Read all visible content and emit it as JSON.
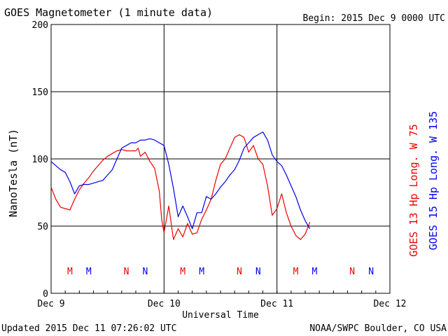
{
  "chart_data": {
    "type": "line",
    "title": "GOES Magnetometer (1 minute data)",
    "begin_label": "Begin:  2015 Dec 9 0000 UTC",
    "xlabel": "Universal Time",
    "ylabel": "NanoTesla (nT)",
    "ylim": [
      0,
      200
    ],
    "yticks": [
      0,
      50,
      100,
      150,
      200
    ],
    "xlim": [
      0,
      72
    ],
    "x_unit": "hours since Dec 9 0000 UTC",
    "xticks": [
      {
        "x": 0,
        "label": "Dec 9"
      },
      {
        "x": 24,
        "label": "Dec 10"
      },
      {
        "x": 48,
        "label": "Dec 11"
      },
      {
        "x": 72,
        "label": "Dec 12"
      }
    ],
    "grid": true,
    "series": [
      {
        "name": "GOES 13 Hp  Long. W 75",
        "color": "#ee0000",
        "x": [
          0,
          1,
          2,
          3,
          4,
          5,
          6,
          7,
          8,
          9,
          10,
          11,
          12,
          13,
          14,
          15,
          16,
          17,
          18,
          18.5,
          19,
          20,
          21,
          22,
          23,
          23.5,
          24,
          25,
          26,
          27,
          28,
          29,
          30,
          31,
          32,
          33,
          34,
          35,
          36,
          37,
          38,
          39,
          40,
          41,
          42,
          43,
          44,
          45,
          46,
          47,
          48,
          49,
          50,
          51,
          52,
          53,
          54,
          55
        ],
        "y": [
          79,
          70,
          64,
          63,
          62,
          70,
          77,
          82,
          86,
          91,
          95,
          99,
          102,
          104,
          106,
          107,
          106,
          106,
          106,
          108,
          102,
          105,
          98,
          93,
          76,
          55,
          45,
          65,
          40,
          48,
          42,
          52,
          44,
          45,
          55,
          62,
          70,
          84,
          96,
          100,
          108,
          116,
          118,
          116,
          105,
          110,
          100,
          96,
          80,
          58,
          63,
          74,
          60,
          50,
          43,
          40,
          44,
          53
        ]
      },
      {
        "name": "GOES 15 Hp  Long. W 135",
        "color": "#0000ee",
        "x": [
          0,
          1,
          2,
          3,
          4,
          5,
          6,
          7,
          8,
          9,
          10,
          11,
          12,
          13,
          14,
          15,
          16,
          17,
          18,
          19,
          20,
          21,
          22,
          23,
          24,
          25,
          26,
          27,
          28,
          29,
          30,
          31,
          32,
          33,
          34,
          35,
          36,
          37,
          38,
          39,
          40,
          41,
          42,
          43,
          44,
          45,
          46,
          47,
          48,
          49,
          50,
          51,
          52,
          53,
          54,
          55
        ],
        "y": [
          98,
          95,
          92,
          90,
          83,
          74,
          80,
          81,
          81,
          82,
          83,
          84,
          88,
          92,
          100,
          108,
          110,
          112,
          112,
          114,
          114,
          115,
          114,
          112,
          110,
          96,
          78,
          57,
          65,
          57,
          48,
          60,
          60,
          72,
          70,
          74,
          79,
          83,
          88,
          92,
          99,
          108,
          112,
          116,
          118,
          120,
          114,
          103,
          98,
          95,
          88,
          80,
          72,
          62,
          54,
          48
        ]
      }
    ],
    "annotations": [
      {
        "text": "M",
        "x": 4,
        "series": 0
      },
      {
        "text": "M",
        "x": 8,
        "series": 1
      },
      {
        "text": "N",
        "x": 16,
        "series": 0
      },
      {
        "text": "N",
        "x": 20,
        "series": 1
      },
      {
        "text": "M",
        "x": 28,
        "series": 0
      },
      {
        "text": "M",
        "x": 32,
        "series": 1
      },
      {
        "text": "N",
        "x": 40,
        "series": 0
      },
      {
        "text": "N",
        "x": 44,
        "series": 1
      },
      {
        "text": "M",
        "x": 52,
        "series": 0
      },
      {
        "text": "M",
        "x": 56,
        "series": 1
      },
      {
        "text": "N",
        "x": 64,
        "series": 0
      },
      {
        "text": "N",
        "x": 68,
        "series": 1
      }
    ]
  },
  "footer": {
    "updated": "Updated 2015 Dec 11 07:26:02 UTC",
    "source": "NOAA/SWPC Boulder, CO USA"
  },
  "colors": {
    "goes13": "#ee0000",
    "goes15": "#0000ee",
    "grid": "#000000",
    "background": "#ffffff"
  }
}
